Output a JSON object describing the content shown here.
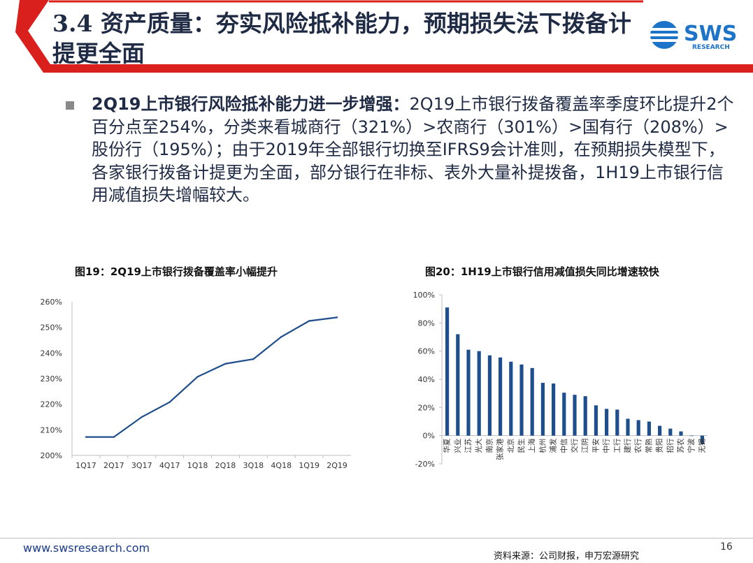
{
  "header": {
    "title": "3.4 资产质量：夯实风险抵补能力，预期损失法下拨备计提更全面",
    "logo_text": "SWS",
    "logo_sub": "RESEARCH"
  },
  "bullet": {
    "lead": "2Q19上市银行风险抵补能力进一步增强：",
    "body": "2Q19上市银行拨备覆盖率季度环比提升2个百分点至254%，分类来看城商行（321%）>农商行（301%）>国有行（208%）>股份行（195%）；由于2019年全部银行切换至IFRS9会计准则，在预期损失模型下，各家银行拨备计提更为全面，部分银行在非标、表外大量补提拨备，1H19上市银行信用减值损失增幅较大。"
  },
  "chart_data": [
    {
      "type": "line",
      "title": "图19：2Q19上市银行拨备覆盖率小幅提升",
      "categories": [
        "1Q17",
        "2Q17",
        "3Q17",
        "4Q17",
        "1Q18",
        "2Q18",
        "3Q18",
        "4Q18",
        "1Q19",
        "2Q19"
      ],
      "values": [
        207.2,
        207.2,
        215.0,
        220.8,
        230.7,
        235.8,
        237.6,
        246.3,
        252.5,
        253.9
      ],
      "ylim": [
        200,
        260
      ],
      "yticks": [
        "200%",
        "210%",
        "220%",
        "230%",
        "240%",
        "250%",
        "260%"
      ],
      "color": "#1f4e8c",
      "grid": false,
      "legend": "none"
    },
    {
      "type": "bar",
      "title": "图20：1H19上市银行信用减值损失同比增速较快",
      "categories": [
        "华夏",
        "兴业",
        "江苏",
        "光大",
        "南京",
        "张家港",
        "北京",
        "民生",
        "上海",
        "杭州",
        "浦发",
        "中信",
        "交行",
        "江阴",
        "平安",
        "中行",
        "工行",
        "建行",
        "农行",
        "常熟",
        "贵阳",
        "招行",
        "苏农",
        "宁波",
        "无锡"
      ],
      "values": [
        91,
        72,
        61,
        60,
        57,
        55.5,
        52.5,
        50.5,
        48,
        37.5,
        37,
        30.5,
        29,
        28,
        21.5,
        19,
        18.5,
        12,
        11,
        10,
        7,
        5,
        3,
        0,
        -6
      ],
      "ylim": [
        -20,
        100
      ],
      "yticks": [
        "-20%",
        "0%",
        "20%",
        "40%",
        "60%",
        "80%",
        "100%"
      ],
      "color": "#1f4e8c",
      "grid": false,
      "legend": "none"
    }
  ],
  "footer": {
    "url": "www.swsresearch.com",
    "source": "资料来源：公司财报，申万宏源研究",
    "page": "16"
  }
}
